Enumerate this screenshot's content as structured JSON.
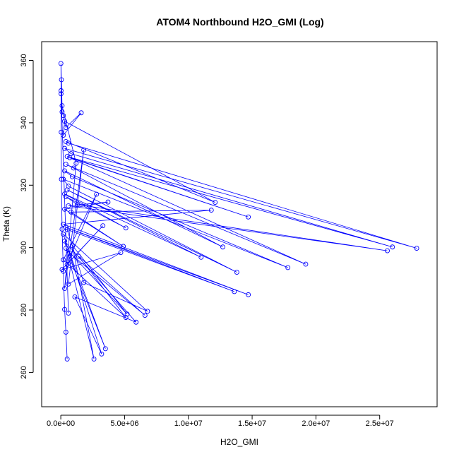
{
  "chart_data": {
    "type": "scatter",
    "title": "ATOM4 Northbound H2O_GMI (Log)",
    "xlabel": "H2O_GMI",
    "ylabel": "Theta (K)",
    "xlim": [
      -1500000,
      29500000
    ],
    "ylim": [
      249,
      366
    ],
    "xticks": [
      {
        "value": 0,
        "label": "0.0e+00"
      },
      {
        "value": 5000000,
        "label": "5.0e+06"
      },
      {
        "value": 10000000,
        "label": "1.0e+07"
      },
      {
        "value": 15000000,
        "label": "1.5e+07"
      },
      {
        "value": 20000000,
        "label": "2.0e+07"
      },
      {
        "value": 25000000,
        "label": "2.5e+07"
      }
    ],
    "yticks": [
      {
        "value": 260,
        "label": "260"
      },
      {
        "value": 280,
        "label": "280"
      },
      {
        "value": 300,
        "label": "300"
      },
      {
        "value": 320,
        "label": "320"
      },
      {
        "value": 340,
        "label": "340"
      },
      {
        "value": 360,
        "label": "360"
      }
    ],
    "grid": false,
    "series": [
      {
        "color": "#0000ff",
        "marker": "open-circle",
        "line": "connected",
        "x": [
          500000,
          400000,
          300000,
          200000,
          100000,
          50000,
          30000,
          20000,
          10000,
          100000,
          200000,
          400000,
          1600000,
          200000,
          300000,
          12100000,
          400000,
          600000,
          27900000,
          300000,
          800000,
          26000000,
          500000,
          14700000,
          700000,
          19200000,
          400000,
          1000000,
          12700000,
          300000,
          900000,
          17800000,
          200000,
          600000,
          13800000,
          500000,
          11000000,
          300000,
          5100000,
          400000,
          1300000,
          25600000,
          600000,
          3700000,
          300000,
          4900000,
          800000,
          11800000,
          200000,
          14700000,
          400000,
          13600000,
          500000,
          1800000,
          6800000,
          200000,
          3200000,
          1100000,
          5900000,
          300000,
          2600000,
          900000,
          5200000,
          400000,
          3500000,
          700000,
          6600000,
          1400000,
          5100000,
          200000,
          2800000,
          500000,
          3300000,
          100000,
          4700000,
          600000,
          1800000,
          300000,
          1200000,
          100000,
          50000,
          20000,
          600000
        ],
        "y": [
          264.3,
          272.9,
          280.2,
          292.4,
          305.9,
          321.9,
          337.0,
          350.3,
          359.0,
          343.5,
          342.3,
          338.5,
          343.2,
          336.0,
          340.5,
          314.5,
          334.0,
          333.5,
          299.8,
          331.8,
          330.1,
          300.2,
          329.2,
          309.8,
          328.8,
          294.7,
          326.7,
          325.5,
          300.2,
          324.6,
          322.7,
          293.6,
          321.9,
          319.7,
          292.1,
          318.5,
          296.9,
          317.2,
          306.3,
          316.3,
          313.8,
          299.0,
          313.4,
          314.6,
          312.3,
          300.4,
          311.4,
          312.0,
          307.5,
          284.9,
          306.5,
          285.9,
          305.8,
          288.8,
          279.6,
          304.3,
          265.9,
          284.2,
          276.1,
          302.1,
          264.3,
          300.7,
          278.7,
          299.8,
          267.6,
          298.2,
          278.3,
          297.2,
          277.6,
          296.1,
          317.1,
          294.6,
          307.0,
          293.0,
          298.4,
          288.3,
          331.3,
          286.9,
          327.0,
          345.5,
          353.8,
          349.3,
          279.0
        ]
      }
    ]
  }
}
